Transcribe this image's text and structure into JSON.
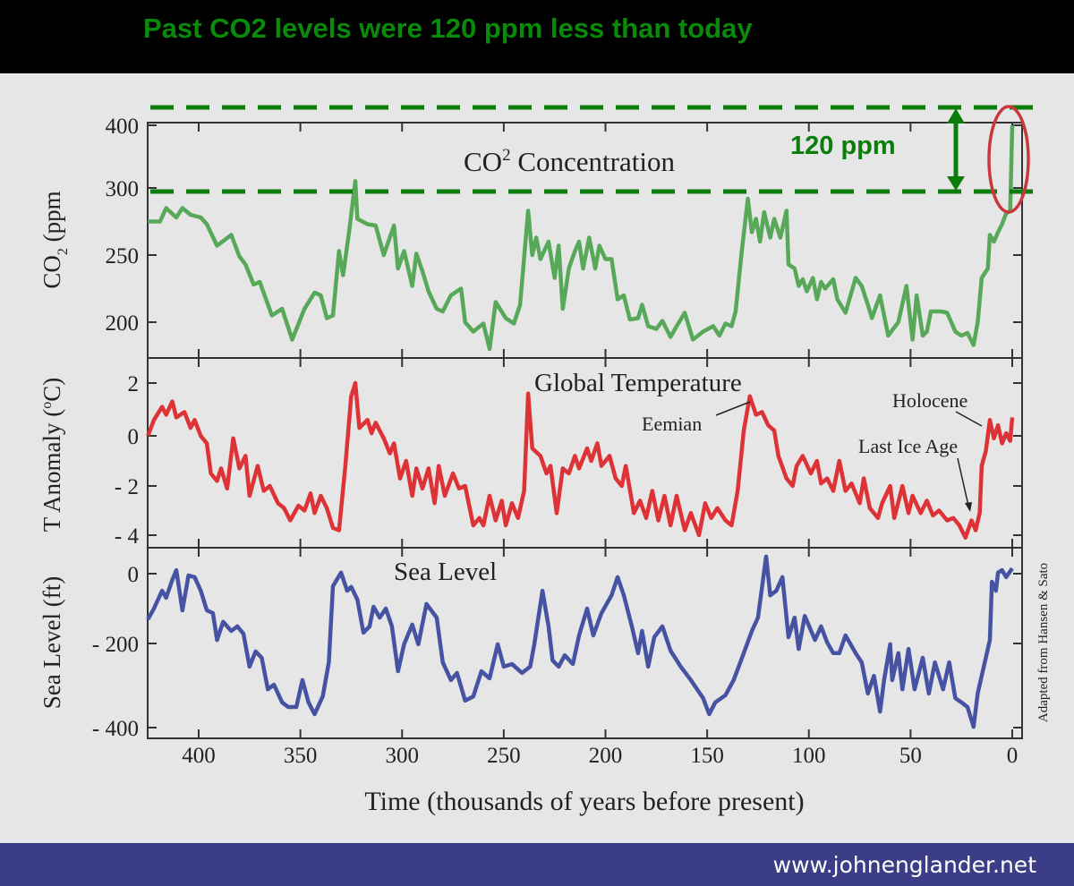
{
  "headline": "Past CO2 levels were 120 ppm less than today",
  "annotation": {
    "gap_label": "120 ppm",
    "gap_ppm": 120,
    "upper_line_ppm": 420,
    "lower_line_ppm": 296,
    "line_color": "#0a7d0a",
    "circle_color": "#c8383c"
  },
  "footer": {
    "url": "www.johnenglander.net",
    "color": "#3b3e86"
  },
  "credit": "Adapted from Hansen & Sato",
  "chart_data": [
    {
      "type": "line",
      "title": {
        "main": "CO",
        "sup": "2",
        "rest": " Concentration"
      },
      "ylabel": {
        "main": "CO",
        "sub": "2",
        "rest": " (ppm"
      },
      "yticks": [
        400,
        300,
        250,
        200
      ],
      "xlim": [
        425,
        0
      ],
      "color": "#58a85a",
      "series": [
        {
          "x": [
            425,
            419,
            416,
            411,
            408,
            404,
            399,
            396,
            391,
            384,
            380,
            377,
            373,
            370,
            364,
            359,
            354,
            348,
            343,
            340,
            337,
            334,
            331,
            329,
            326,
            323,
            322,
            317,
            313,
            309,
            304,
            302,
            299,
            295,
            293,
            290,
            287,
            283,
            280,
            276,
            271,
            269,
            265,
            260,
            257,
            254,
            249,
            245,
            242,
            238,
            236,
            234,
            232,
            228,
            225,
            223,
            221,
            218,
            215,
            213,
            211,
            208,
            205,
            203,
            200,
            197,
            194,
            191,
            188,
            184,
            182,
            179,
            175,
            172,
            168,
            165,
            161,
            157,
            152,
            147,
            144,
            141,
            138,
            136,
            133,
            130,
            128,
            126,
            124,
            122,
            119,
            117,
            114,
            111,
            110,
            107,
            105,
            103,
            101,
            98,
            96,
            94,
            92,
            88,
            86,
            82,
            77,
            74,
            71,
            69,
            65,
            61,
            56,
            52,
            49,
            47,
            44,
            42,
            40,
            35,
            32,
            28,
            25,
            22,
            19,
            17,
            15,
            12,
            11,
            9,
            7,
            5,
            3,
            1,
            0
          ],
          "y": [
            275,
            275,
            285,
            278,
            285,
            280,
            278,
            273,
            257,
            265,
            249,
            243,
            228,
            230,
            205,
            210,
            187,
            210,
            222,
            220,
            203,
            205,
            253,
            235,
            268,
            311,
            277,
            273,
            272,
            250,
            272,
            240,
            253,
            227,
            251,
            238,
            223,
            210,
            208,
            220,
            225,
            200,
            193,
            199,
            180,
            215,
            203,
            199,
            213,
            283,
            250,
            263,
            247,
            260,
            233,
            257,
            210,
            240,
            253,
            260,
            240,
            263,
            240,
            257,
            247,
            247,
            217,
            220,
            202,
            203,
            213,
            197,
            195,
            201,
            189,
            197,
            207,
            187,
            193,
            197,
            190,
            199,
            197,
            208,
            253,
            292,
            267,
            277,
            260,
            282,
            263,
            277,
            263,
            283,
            243,
            240,
            227,
            232,
            223,
            233,
            217,
            230,
            225,
            232,
            217,
            207,
            233,
            227,
            213,
            203,
            220,
            190,
            200,
            227,
            187,
            220,
            190,
            193,
            208,
            208,
            207,
            193,
            190,
            192,
            183,
            200,
            233,
            240,
            265,
            260,
            267,
            273,
            281,
            283,
            400
          ]
        }
      ]
    },
    {
      "type": "line",
      "title": "Global Temperature",
      "ylabel": {
        "main": "T Anomaly (",
        "sup": "o",
        "rest": "C)"
      },
      "yticks": [
        2,
        0,
        -2,
        -4
      ],
      "yticklabels": [
        "2",
        "0",
        "- 2",
        "- 4"
      ],
      "color": "#dd3236",
      "annotations": [
        "Eemian",
        "Holocene",
        "Last Ice Age"
      ],
      "series": [
        {
          "x": [
            425,
            422,
            418,
            416,
            413,
            411,
            407,
            404,
            402,
            399,
            396,
            394,
            391,
            389,
            386,
            383,
            380,
            377,
            375,
            371,
            368,
            365,
            361,
            358,
            355,
            351,
            348,
            345,
            343,
            340,
            337,
            334,
            331,
            328,
            325,
            323,
            321,
            317,
            315,
            313,
            309,
            306,
            304,
            301,
            298,
            295,
            293,
            290,
            287,
            284,
            282,
            279,
            275,
            272,
            269,
            265,
            262,
            260,
            257,
            254,
            251,
            249,
            246,
            243,
            240,
            238,
            236,
            232,
            229,
            227,
            224,
            221,
            218,
            215,
            213,
            209,
            207,
            204,
            202,
            198,
            195,
            192,
            190,
            186,
            183,
            180,
            177,
            174,
            171,
            168,
            165,
            161,
            158,
            154,
            151,
            148,
            145,
            141,
            138,
            135,
            132,
            129,
            126,
            123,
            120,
            117,
            115,
            111,
            108,
            106,
            103,
            99,
            96,
            94,
            91,
            88,
            85,
            82,
            79,
            75,
            73,
            70,
            66,
            64,
            60,
            58,
            54,
            51,
            49,
            45,
            42,
            39,
            36,
            32,
            29,
            26,
            23,
            20,
            18,
            16,
            15,
            13,
            11,
            9,
            7,
            5,
            3,
            1,
            0
          ],
          "y": [
            0,
            0.6,
            1.1,
            0.8,
            1.3,
            0.7,
            0.9,
            0.3,
            0.6,
            0,
            -0.3,
            -1.5,
            -1.8,
            -1.3,
            -2.1,
            -0.1,
            -1.3,
            -0.8,
            -2.4,
            -1.2,
            -2.2,
            -2.0,
            -2.7,
            -2.9,
            -3.4,
            -2.8,
            -3.0,
            -2.3,
            -3.1,
            -2.4,
            -2.9,
            -3.7,
            -3.8,
            -1.3,
            1.5,
            2.0,
            0.3,
            0.6,
            0.1,
            0.5,
            -0.1,
            -0.7,
            -0.3,
            -1.7,
            -1.0,
            -2.4,
            -1.3,
            -2.1,
            -1.3,
            -2.7,
            -1.2,
            -2.4,
            -1.5,
            -2.1,
            -2.0,
            -3.6,
            -3.3,
            -3.6,
            -2.4,
            -3.4,
            -2.6,
            -3.6,
            -2.7,
            -3.3,
            -2.2,
            1.6,
            -0.5,
            -0.8,
            -1.5,
            -1.2,
            -3.1,
            -1.3,
            -1.5,
            -0.8,
            -1.3,
            -0.5,
            -1.0,
            -0.3,
            -1.2,
            -0.8,
            -1.7,
            -2.0,
            -1.2,
            -3.1,
            -2.6,
            -3.3,
            -2.2,
            -3.4,
            -2.4,
            -3.6,
            -2.4,
            -3.8,
            -3.1,
            -4.0,
            -2.7,
            -3.3,
            -2.9,
            -3.4,
            -3.6,
            -2.2,
            0.2,
            1.5,
            0.8,
            0.9,
            0.4,
            0.2,
            -0.8,
            -1.7,
            -2.0,
            -1.2,
            -0.8,
            -1.5,
            -1.0,
            -1.9,
            -1.7,
            -2.2,
            -1.0,
            -2.2,
            -1.9,
            -2.7,
            -1.7,
            -2.9,
            -3.3,
            -2.7,
            -2.0,
            -3.3,
            -2.0,
            -3.1,
            -2.4,
            -3.1,
            -2.6,
            -3.2,
            -3.0,
            -3.4,
            -3.3,
            -3.6,
            -4.1,
            -3.4,
            -3.8,
            -3.1,
            -1.2,
            -0.6,
            0.6,
            -0.1,
            0.4,
            -0.3,
            0.1,
            -0.2,
            0.7
          ]
        }
      ]
    },
    {
      "type": "line",
      "title": "Sea Level",
      "ylabel": "Sea Level (ft)",
      "yticks": [
        0,
        -200,
        -400
      ],
      "yticklabels": [
        "0",
        "- 200",
        "- 400"
      ],
      "color": "#4653a3",
      "xlabel": "Time (thousands of years before present)",
      "xticks": [
        400,
        350,
        300,
        250,
        200,
        150,
        100,
        50,
        0
      ],
      "series": [
        {
          "x": [
            425,
            422,
            418,
            416,
            413,
            411,
            408,
            405,
            402,
            399,
            396,
            393,
            391,
            388,
            384,
            381,
            378,
            375,
            372,
            369,
            366,
            363,
            359,
            356,
            352,
            349,
            346,
            343,
            339,
            336,
            334,
            330,
            327,
            325,
            322,
            319,
            316,
            314,
            311,
            308,
            305,
            302,
            299,
            295,
            292,
            288,
            283,
            280,
            276,
            273,
            269,
            265,
            261,
            257,
            253,
            250,
            246,
            241,
            237,
            235,
            231,
            228,
            226,
            223,
            220,
            216,
            213,
            209,
            206,
            202,
            197,
            194,
            191,
            187,
            184,
            182,
            179,
            176,
            172,
            168,
            163,
            158,
            152,
            149,
            146,
            141,
            137,
            132,
            128,
            125,
            121,
            119,
            116,
            113,
            110,
            107,
            105,
            102,
            97,
            94,
            91,
            88,
            85,
            82,
            77,
            74,
            71,
            68,
            65,
            63,
            60,
            59,
            56,
            54,
            51,
            48,
            44,
            41,
            38,
            34,
            31,
            28,
            25,
            22,
            19,
            17,
            14,
            11,
            10,
            8,
            7,
            5,
            3,
            0
          ],
          "y": [
            -131,
            -100,
            -49,
            -69,
            -18,
            10,
            -105,
            -5,
            -10,
            -49,
            -105,
            -113,
            -190,
            -138,
            -164,
            -151,
            -172,
            -255,
            -219,
            -234,
            -309,
            -298,
            -340,
            -351,
            -351,
            -287,
            -340,
            -368,
            -326,
            -245,
            -36,
            3,
            -49,
            -38,
            -74,
            -169,
            -151,
            -95,
            -126,
            -100,
            -151,
            -266,
            -202,
            -146,
            -202,
            -87,
            -126,
            -245,
            -287,
            -270,
            -336,
            -326,
            -266,
            -283,
            -202,
            -255,
            -249,
            -270,
            -255,
            -202,
            -49,
            -151,
            -240,
            -255,
            -228,
            -249,
            -177,
            -100,
            -177,
            -113,
            -62,
            -10,
            -62,
            -151,
            -223,
            -164,
            -255,
            -182,
            -151,
            -217,
            -255,
            -287,
            -330,
            -368,
            -340,
            -323,
            -287,
            -223,
            -164,
            -126,
            49,
            -62,
            -49,
            -10,
            -182,
            -126,
            -213,
            -121,
            -190,
            -151,
            -197,
            -223,
            -223,
            -177,
            -223,
            -245,
            -319,
            -277,
            -362,
            -287,
            -202,
            -287,
            -223,
            -309,
            -213,
            -309,
            -234,
            -319,
            -245,
            -309,
            -245,
            -330,
            -340,
            -351,
            -398,
            -319,
            -255,
            -190,
            -23,
            -49,
            3,
            10,
            -10,
            15
          ]
        }
      ]
    }
  ]
}
